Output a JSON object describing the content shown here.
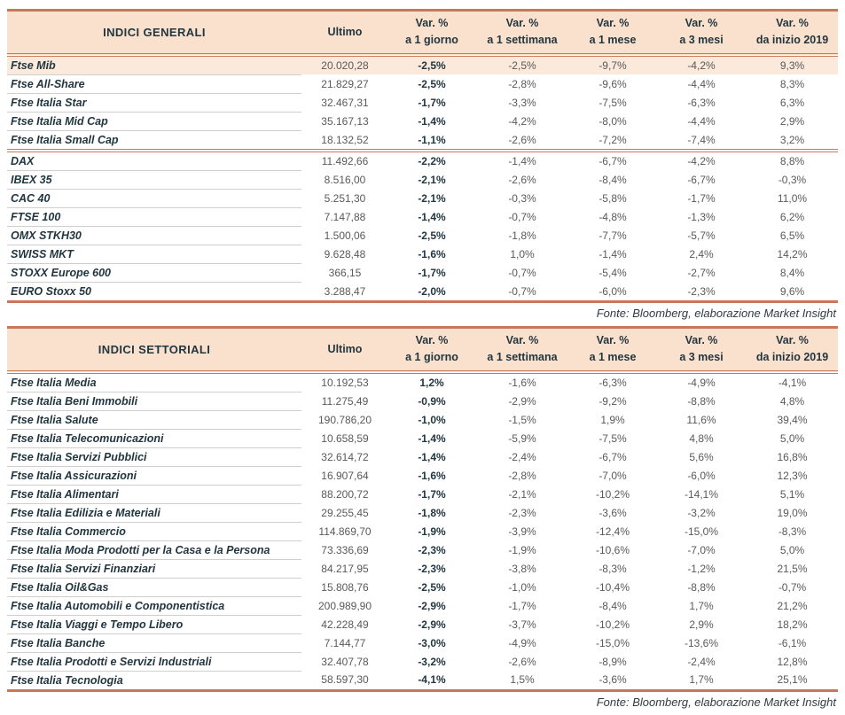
{
  "colors": {
    "accent_border": "#C9765B",
    "header_bg": "#FAE1CD",
    "highlight_row_bg": "#FBE9DB",
    "dark_text": "#223640",
    "value_text": "#595959",
    "row_divider": "#CFCFCF"
  },
  "columns": {
    "ultimo_label": "Ultimo",
    "var_top": "Var. %",
    "var_bottoms": [
      "a 1 giorno",
      "a 1 settimana",
      "a 1 mese",
      "a 3 mesi",
      "da inizio 2019"
    ]
  },
  "tables": [
    {
      "title": "INDICI GENERALI",
      "source": "Fonte: Bloomberg, elaborazione Market Insight",
      "rows": [
        {
          "name": "Ftse Mib",
          "ultimo": "20.020,28",
          "vars": [
            "-2,5%",
            "-2,5%",
            "-9,7%",
            "-4,2%",
            "9,3%"
          ],
          "highlight": true
        },
        {
          "name": "Ftse All-Share",
          "ultimo": "21.829,27",
          "vars": [
            "-2,5%",
            "-2,8%",
            "-9,6%",
            "-4,4%",
            "8,3%"
          ]
        },
        {
          "name": "Ftse Italia Star",
          "ultimo": "32.467,31",
          "vars": [
            "-1,7%",
            "-3,3%",
            "-7,5%",
            "-6,3%",
            "6,3%"
          ]
        },
        {
          "name": "Ftse Italia Mid Cap",
          "ultimo": "35.167,13",
          "vars": [
            "-1,4%",
            "-4,2%",
            "-8,0%",
            "-4,4%",
            "2,9%"
          ]
        },
        {
          "name": "Ftse Italia Small Cap",
          "ultimo": "18.132,52",
          "vars": [
            "-1,1%",
            "-2,6%",
            "-7,2%",
            "-7,4%",
            "3,2%"
          ]
        },
        {
          "name": "DAX",
          "ultimo": "11.492,66",
          "vars": [
            "-2,2%",
            "-1,4%",
            "-6,7%",
            "-4,2%",
            "8,8%"
          ],
          "group_start": true
        },
        {
          "name": "IBEX 35",
          "ultimo": "8.516,00",
          "vars": [
            "-2,1%",
            "-2,6%",
            "-8,4%",
            "-6,7%",
            "-0,3%"
          ]
        },
        {
          "name": "CAC 40",
          "ultimo": "5.251,30",
          "vars": [
            "-2,1%",
            "-0,3%",
            "-5,8%",
            "-1,7%",
            "11,0%"
          ]
        },
        {
          "name": "FTSE 100",
          "ultimo": "7.147,88",
          "vars": [
            "-1,4%",
            "-0,7%",
            "-4,8%",
            "-1,3%",
            "6,2%"
          ]
        },
        {
          "name": "OMX STKH30",
          "ultimo": "1.500,06",
          "vars": [
            "-2,5%",
            "-1,8%",
            "-7,7%",
            "-5,7%",
            "6,5%"
          ]
        },
        {
          "name": "SWISS MKT",
          "ultimo": "9.628,48",
          "vars": [
            "-1,6%",
            "1,0%",
            "-1,4%",
            "2,4%",
            "14,2%"
          ]
        },
        {
          "name": "STOXX Europe 600",
          "ultimo": "366,15",
          "vars": [
            "-1,7%",
            "-0,7%",
            "-5,4%",
            "-2,7%",
            "8,4%"
          ]
        },
        {
          "name": "EURO Stoxx 50",
          "ultimo": "3.288,47",
          "vars": [
            "-2,0%",
            "-0,7%",
            "-6,0%",
            "-2,3%",
            "9,6%"
          ]
        }
      ]
    },
    {
      "title": "INDICI SETTORIALI",
      "source": "Fonte: Bloomberg, elaborazione Market Insight",
      "rows": [
        {
          "name": "Ftse Italia Media",
          "ultimo": "10.192,53",
          "vars": [
            "1,2%",
            "-1,6%",
            "-6,3%",
            "-4,9%",
            "-4,1%"
          ]
        },
        {
          "name": "Ftse Italia Beni Immobili",
          "ultimo": "11.275,49",
          "vars": [
            "-0,9%",
            "-2,9%",
            "-9,2%",
            "-8,8%",
            "4,8%"
          ]
        },
        {
          "name": "Ftse Italia Salute",
          "ultimo": "190.786,20",
          "vars": [
            "-1,0%",
            "-1,5%",
            "1,9%",
            "11,6%",
            "39,4%"
          ]
        },
        {
          "name": "Ftse Italia Telecomunicazioni",
          "ultimo": "10.658,59",
          "vars": [
            "-1,4%",
            "-5,9%",
            "-7,5%",
            "4,8%",
            "5,0%"
          ]
        },
        {
          "name": "Ftse Italia Servizi Pubblici",
          "ultimo": "32.614,72",
          "vars": [
            "-1,4%",
            "-2,4%",
            "-6,7%",
            "5,6%",
            "16,8%"
          ]
        },
        {
          "name": "Ftse Italia Assicurazioni",
          "ultimo": "16.907,64",
          "vars": [
            "-1,6%",
            "-2,8%",
            "-7,0%",
            "-6,0%",
            "12,3%"
          ]
        },
        {
          "name": "Ftse Italia Alimentari",
          "ultimo": "88.200,72",
          "vars": [
            "-1,7%",
            "-2,1%",
            "-10,2%",
            "-14,1%",
            "5,1%"
          ]
        },
        {
          "name": "Ftse Italia Edilizia e Materiali",
          "ultimo": "29.255,45",
          "vars": [
            "-1,8%",
            "-2,3%",
            "-3,6%",
            "-3,2%",
            "19,0%"
          ]
        },
        {
          "name": "Ftse Italia Commercio",
          "ultimo": "114.869,70",
          "vars": [
            "-1,9%",
            "-3,9%",
            "-12,4%",
            "-15,0%",
            "-8,3%"
          ]
        },
        {
          "name": "Ftse Italia Moda Prodotti per la Casa e la Persona",
          "ultimo": "73.336,69",
          "vars": [
            "-2,3%",
            "-1,9%",
            "-10,6%",
            "-7,0%",
            "5,0%"
          ]
        },
        {
          "name": "Ftse Italia Servizi Finanziari",
          "ultimo": "84.217,95",
          "vars": [
            "-2,3%",
            "-3,8%",
            "-8,3%",
            "-1,2%",
            "21,5%"
          ]
        },
        {
          "name": "Ftse Italia Oil&Gas",
          "ultimo": "15.808,76",
          "vars": [
            "-2,5%",
            "-1,0%",
            "-10,4%",
            "-8,8%",
            "-0,7%"
          ]
        },
        {
          "name": "Ftse Italia Automobili e Componentistica",
          "ultimo": "200.989,90",
          "vars": [
            "-2,9%",
            "-1,7%",
            "-8,4%",
            "1,7%",
            "21,2%"
          ]
        },
        {
          "name": "Ftse Italia Viaggi e Tempo Libero",
          "ultimo": "42.228,49",
          "vars": [
            "-2,9%",
            "-3,7%",
            "-10,2%",
            "2,9%",
            "18,2%"
          ]
        },
        {
          "name": "Ftse Italia Banche",
          "ultimo": "7.144,77",
          "vars": [
            "-3,0%",
            "-4,9%",
            "-15,0%",
            "-13,6%",
            "-6,1%"
          ]
        },
        {
          "name": "Ftse Italia Prodotti e Servizi Industriali",
          "ultimo": "32.407,78",
          "vars": [
            "-3,2%",
            "-2,6%",
            "-8,9%",
            "-2,4%",
            "12,8%"
          ]
        },
        {
          "name": "Ftse Italia Tecnologia",
          "ultimo": "58.597,30",
          "vars": [
            "-4,1%",
            "1,5%",
            "-3,6%",
            "1,7%",
            "25,1%"
          ]
        }
      ]
    }
  ]
}
